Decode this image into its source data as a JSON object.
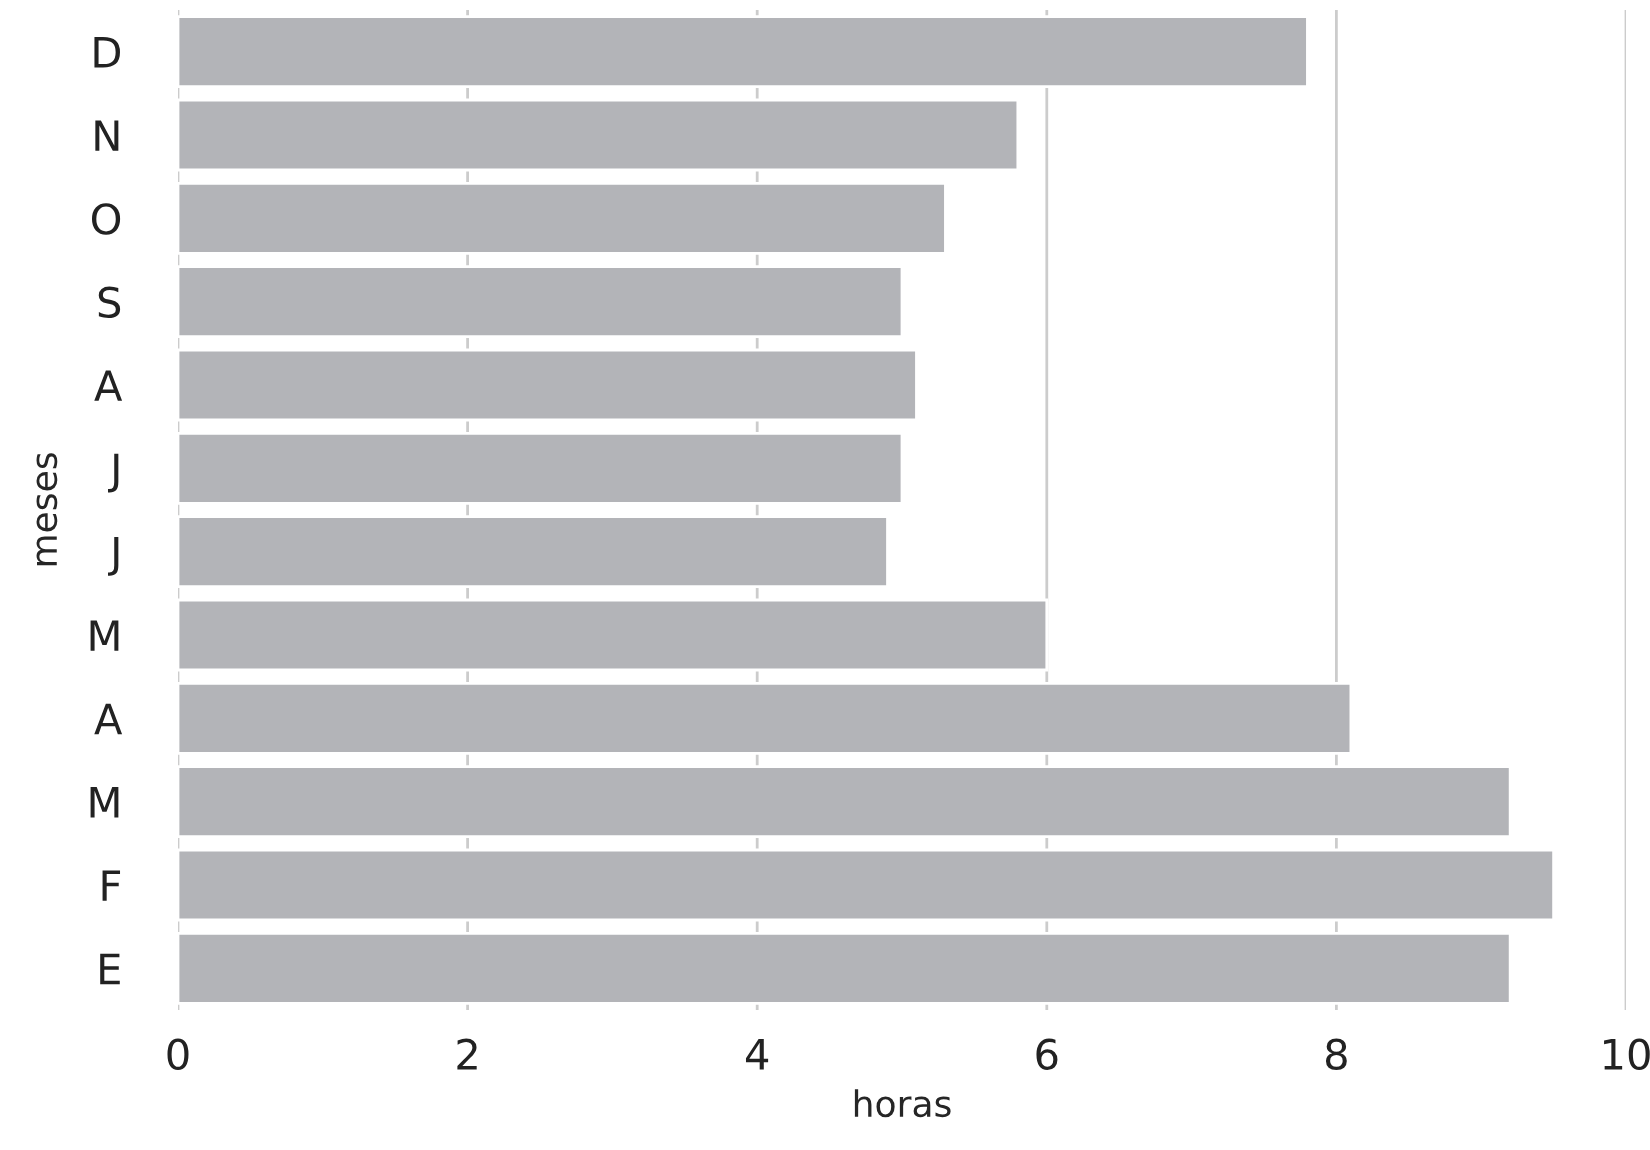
{
  "chart_data": {
    "type": "bar",
    "orientation": "horizontal",
    "xlabel": "horas",
    "ylabel": "meses",
    "categories": [
      "D",
      "N",
      "O",
      "S",
      "A",
      "J",
      "J",
      "M",
      "A",
      "M",
      "F",
      "E"
    ],
    "values": [
      7.8,
      5.8,
      5.3,
      5.0,
      5.1,
      5.0,
      4.9,
      6.0,
      8.1,
      9.2,
      9.5,
      9.2
    ],
    "color": "#b3b4b8",
    "xlim": [
      0,
      10
    ],
    "xticks": [
      0,
      2,
      4,
      6,
      8,
      10
    ],
    "grid": "x",
    "legend": false
  }
}
